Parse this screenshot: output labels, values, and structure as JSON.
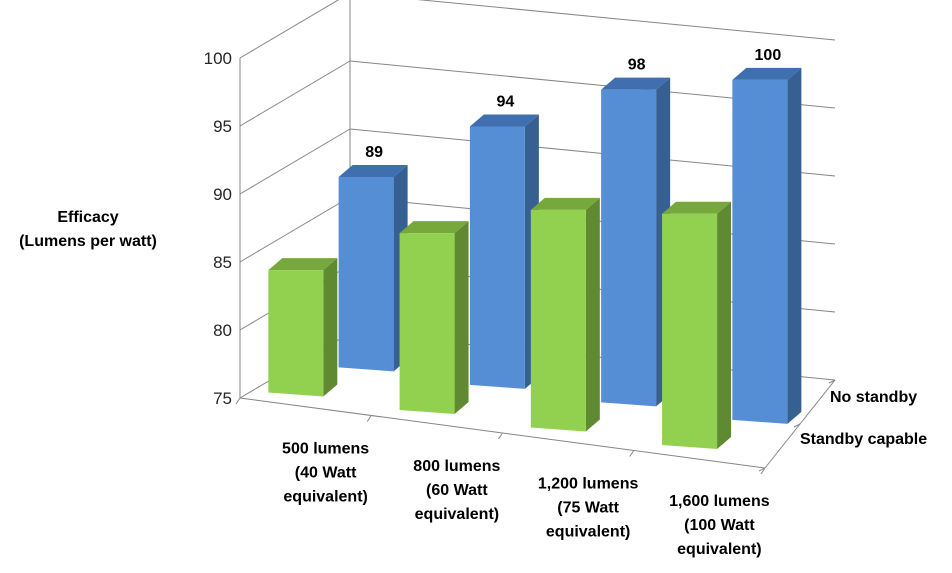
{
  "chart_data": {
    "type": "bar",
    "title": "",
    "ylabel": [
      "Efficacy",
      "(Lumens per watt)"
    ],
    "ylim": [
      75,
      100
    ],
    "yticks": [
      75,
      80,
      85,
      90,
      95,
      100
    ],
    "categories": [
      [
        "500 lumens",
        "(40 Watt",
        "equivalent)"
      ],
      [
        "800 lumens",
        "(60 Watt",
        "equivalent)"
      ],
      [
        "1,200 lumens",
        "(75 Watt",
        "equivalent)"
      ],
      [
        "1,600 lumens",
        "(100 Watt",
        "equivalent)"
      ]
    ],
    "series": [
      {
        "name": "No standby",
        "values": [
          89,
          94,
          98,
          100
        ],
        "data_labels": [
          "89",
          "94",
          "98",
          "100"
        ],
        "colors": {
          "front": "#558ED5",
          "side": "#376092",
          "top": "#3F6FAE"
        }
      },
      {
        "name": "Standby capable",
        "values": [
          84,
          88,
          91,
          92
        ],
        "data_labels": [],
        "colors": {
          "front": "#92D050",
          "side": "#5F8A32",
          "top": "#76A83C"
        }
      }
    ],
    "grid": true,
    "chart_style": "3d-clustered-depth"
  }
}
